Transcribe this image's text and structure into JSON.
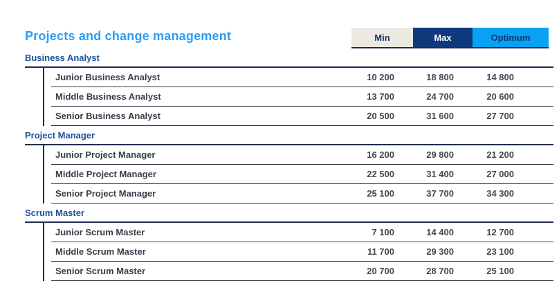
{
  "page": {
    "title": "Projects and change management"
  },
  "legend": {
    "min_label": "Min",
    "max_label": "Max",
    "optimum_label": "Optimum"
  },
  "colors": {
    "title_blue": "#2e9df3",
    "category_blue": "#1d4f9b",
    "line_navy": "#1f2c4e",
    "min_button_bg": "#ece9e2",
    "max_button_bg": "#0e3a7c",
    "optimum_button_bg": "#09a1f1",
    "max_button_text": "#ffffff",
    "navy_text": "#1c3667"
  },
  "groups": [
    {
      "name": "Business Analyst",
      "rows": [
        {
          "label": "Junior Business Analyst",
          "min": "10 200",
          "max": "18 800",
          "optimum": "14 800"
        },
        {
          "label": "Middle Business Analyst",
          "min": "13 700",
          "max": "24 700",
          "optimum": "20 600"
        },
        {
          "label": "Senior Business Analyst",
          "min": "20 500",
          "max": "31 600",
          "optimum": "27 700"
        }
      ]
    },
    {
      "name": "Project Manager",
      "rows": [
        {
          "label": "Junior Project Manager",
          "min": "16 200",
          "max": "29 800",
          "optimum": "21 200"
        },
        {
          "label": "Middle Project Manager",
          "min": "22 500",
          "max": "31 400",
          "optimum": "27 000"
        },
        {
          "label": "Senior Project Manager",
          "min": "25 100",
          "max": "37 700",
          "optimum": "34 300"
        }
      ]
    },
    {
      "name": "Scrum Master",
      "rows": [
        {
          "label": "Junior Scrum Master",
          "min": "7 100",
          "max": "14 400",
          "optimum": "12 700"
        },
        {
          "label": "Middle Scrum Master",
          "min": "11 700",
          "max": "29 300",
          "optimum": "23 100"
        },
        {
          "label": "Senior Scrum Master",
          "min": "20 700",
          "max": "28 700",
          "optimum": "25 100"
        }
      ]
    }
  ]
}
